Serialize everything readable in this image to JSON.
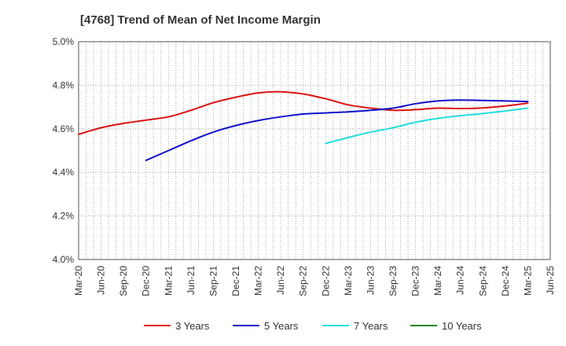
{
  "chart_data": {
    "type": "line",
    "title": "[4768]  Trend of Mean of Net Income Margin",
    "xlabel": "",
    "ylabel": "",
    "x_ticks": [
      "Mar-20",
      "Jun-20",
      "Sep-20",
      "Dec-20",
      "Mar-21",
      "Jun-21",
      "Sep-21",
      "Dec-21",
      "Mar-22",
      "Jun-22",
      "Sep-22",
      "Dec-22",
      "Mar-23",
      "Jun-23",
      "Sep-23",
      "Dec-23",
      "Mar-24",
      "Jun-24",
      "Sep-24",
      "Dec-24",
      "Mar-25",
      "Jun-25"
    ],
    "y_ticks": [
      "4.0%",
      "4.2%",
      "4.4%",
      "4.6%",
      "4.8%",
      "5.0%"
    ],
    "ylim": [
      4.0,
      5.0
    ],
    "grid": true,
    "legend_position": "bottom",
    "series": [
      {
        "name": "3 Years",
        "color": "#dd1111",
        "points": [
          [
            "Mar-20",
            4.575
          ],
          [
            "Jun-20",
            4.605
          ],
          [
            "Sep-20",
            4.625
          ],
          [
            "Dec-20",
            4.64
          ],
          [
            "Mar-21",
            4.655
          ],
          [
            "Jun-21",
            4.685
          ],
          [
            "Sep-21",
            4.72
          ],
          [
            "Dec-21",
            4.745
          ],
          [
            "Mar-22",
            4.765
          ],
          [
            "Jun-22",
            4.77
          ],
          [
            "Sep-22",
            4.76
          ],
          [
            "Dec-22",
            4.738
          ],
          [
            "Mar-23",
            4.71
          ],
          [
            "Jun-23",
            4.695
          ],
          [
            "Sep-23",
            4.685
          ],
          [
            "Dec-23",
            4.688
          ],
          [
            "Mar-24",
            4.695
          ],
          [
            "Jun-24",
            4.693
          ],
          [
            "Sep-24",
            4.696
          ],
          [
            "Dec-24",
            4.705
          ],
          [
            "Mar-25",
            4.718
          ]
        ]
      },
      {
        "name": "5 Years",
        "color": "#1111cc",
        "points": [
          [
            "Dec-20",
            4.455
          ],
          [
            "Mar-21",
            4.5
          ],
          [
            "Jun-21",
            4.545
          ],
          [
            "Sep-21",
            4.585
          ],
          [
            "Dec-21",
            4.615
          ],
          [
            "Mar-22",
            4.638
          ],
          [
            "Jun-22",
            4.655
          ],
          [
            "Sep-22",
            4.668
          ],
          [
            "Dec-22",
            4.673
          ],
          [
            "Mar-23",
            4.678
          ],
          [
            "Jun-23",
            4.685
          ],
          [
            "Sep-23",
            4.695
          ],
          [
            "Dec-23",
            4.715
          ],
          [
            "Mar-24",
            4.728
          ],
          [
            "Jun-24",
            4.732
          ],
          [
            "Sep-24",
            4.73
          ],
          [
            "Dec-24",
            4.728
          ],
          [
            "Mar-25",
            4.725
          ]
        ]
      },
      {
        "name": "7 Years",
        "color": "#22dddd",
        "points": [
          [
            "Dec-22",
            4.533
          ],
          [
            "Mar-23",
            4.56
          ],
          [
            "Jun-23",
            4.585
          ],
          [
            "Sep-23",
            4.605
          ],
          [
            "Dec-23",
            4.63
          ],
          [
            "Mar-24",
            4.648
          ],
          [
            "Jun-24",
            4.66
          ],
          [
            "Sep-24",
            4.67
          ],
          [
            "Dec-24",
            4.682
          ],
          [
            "Mar-25",
            4.695
          ]
        ]
      },
      {
        "name": "10 Years",
        "color": "#228822",
        "points": []
      }
    ]
  }
}
